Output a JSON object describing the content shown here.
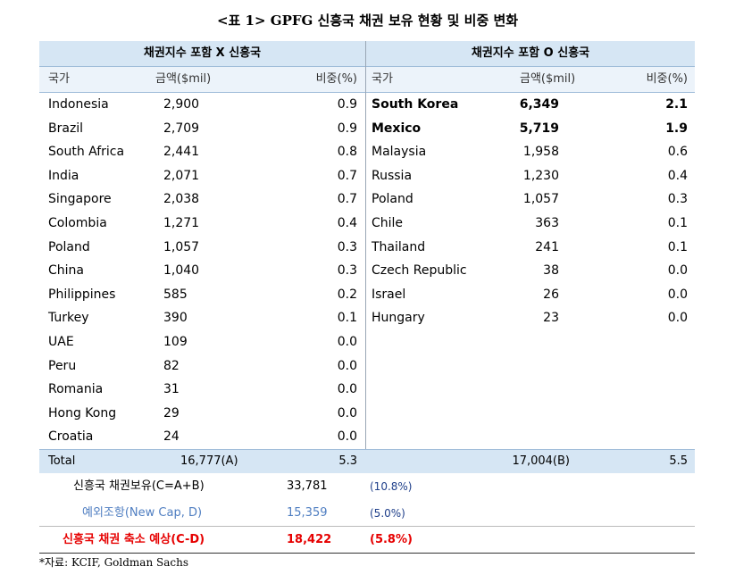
{
  "title": "<표 1> GPFG 신흥국 채권 보유 현황 및 비중 변화",
  "left_table": {
    "header": "채권지수 포함 X 신흥국",
    "col_country": "국가",
    "col_amount": "금액($mil)",
    "col_share": "비중(%)",
    "rows": [
      {
        "country": "Indonesia",
        "amount": "2,900",
        "share": "0.9"
      },
      {
        "country": "Brazil",
        "amount": "2,709",
        "share": "0.9"
      },
      {
        "country": "South Africa",
        "amount": "2,441",
        "share": "0.8"
      },
      {
        "country": "India",
        "amount": "2,071",
        "share": "0.7"
      },
      {
        "country": "Singapore",
        "amount": "2,038",
        "share": "0.7"
      },
      {
        "country": "Colombia",
        "amount": "1,271",
        "share": "0.4"
      },
      {
        "country": "Poland",
        "amount": "1,057",
        "share": "0.3"
      },
      {
        "country": "China",
        "amount": "1,040",
        "share": "0.3"
      },
      {
        "country": "Philippines",
        "amount": "585",
        "share": "0.2"
      },
      {
        "country": "Turkey",
        "amount": "390",
        "share": "0.1"
      },
      {
        "country": "UAE",
        "amount": "109",
        "share": "0.0"
      },
      {
        "country": "Peru",
        "amount": "82",
        "share": "0.0"
      },
      {
        "country": "Romania",
        "amount": "31",
        "share": "0.0"
      },
      {
        "country": "Hong Kong",
        "amount": "29",
        "share": "0.0"
      },
      {
        "country": "Croatia",
        "amount": "24",
        "share": "0.0"
      }
    ],
    "total_label": "Total",
    "total_amount": "16,777(A)",
    "total_share": "5.3"
  },
  "right_table": {
    "header": "채권지수 포함 O 신흥국",
    "col_country": "국가",
    "col_amount": "금액($mil)",
    "col_share": "비중(%)",
    "rows": [
      {
        "country": "South Korea",
        "amount": "6,349",
        "share": "2.1"
      },
      {
        "country": "Mexico",
        "amount": "5,719",
        "share": "1.9"
      },
      {
        "country": "Malaysia",
        "amount": "1,958",
        "share": "0.6"
      },
      {
        "country": "Russia",
        "amount": "1,230",
        "share": "0.4"
      },
      {
        "country": "Poland",
        "amount": "1,057",
        "share": "0.3"
      },
      {
        "country": "Chile",
        "amount": "363",
        "share": "0.1"
      },
      {
        "country": "Thailand",
        "amount": "241",
        "share": "0.1"
      },
      {
        "country": "Czech Republic",
        "amount": "38",
        "share": "0.0"
      },
      {
        "country": "Israel",
        "amount": "26",
        "share": "0.0"
      },
      {
        "country": "Hungary",
        "amount": "23",
        "share": "0.0"
      }
    ],
    "total_amount": "17,004(B)",
    "total_share": "5.5"
  },
  "summary": [
    {
      "label": "신흥국 채권보유(C=A+B)",
      "value": "33,781",
      "pct": "(10.8%)"
    },
    {
      "label": "예외조항(New Cap, D)",
      "value": "15,359",
      "pct": "(5.0%)"
    },
    {
      "label": "신흥국 채권 축소 예상(C-D)",
      "value": "18,422",
      "pct": "(5.8%)"
    }
  ],
  "source": "*자료: KCIF, Goldman Sachs",
  "colors": {
    "header_bg": "#d6e6f4",
    "subheader_bg": "#ecf3fa",
    "summary_blue": "#4f7ec1",
    "highlight_red": "#e60000"
  }
}
